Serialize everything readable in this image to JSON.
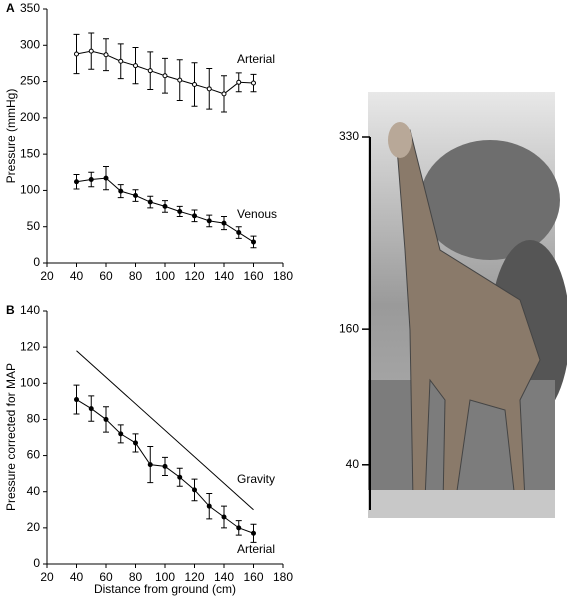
{
  "chart_data": [
    {
      "type": "line",
      "panel": "A",
      "ylabel": "Pressure (mmHg)",
      "xlim": [
        20,
        180
      ],
      "xticks": [
        20,
        40,
        60,
        80,
        100,
        120,
        140,
        160,
        180
      ],
      "ylim": [
        0,
        350
      ],
      "yticks": [
        0,
        50,
        100,
        150,
        200,
        250,
        300,
        350
      ],
      "series": [
        {
          "name": "Arterial",
          "color": "#000000",
          "marker": "open",
          "x": [
            40,
            50,
            60,
            70,
            80,
            90,
            100,
            110,
            120,
            130,
            140,
            150,
            160
          ],
          "values": [
            288,
            292,
            287,
            278,
            272,
            265,
            258,
            252,
            246,
            240,
            233,
            249,
            248
          ],
          "errors": [
            27,
            25,
            22,
            24,
            25,
            26,
            24,
            28,
            30,
            28,
            25,
            13,
            12
          ]
        },
        {
          "name": "Venous",
          "color": "#000000",
          "marker": "filled",
          "x": [
            40,
            50,
            60,
            70,
            80,
            90,
            100,
            110,
            120,
            130,
            140,
            150,
            160
          ],
          "values": [
            112,
            115,
            117,
            99,
            93,
            84,
            78,
            71,
            65,
            58,
            55,
            42,
            29
          ],
          "errors": [
            10,
            10,
            16,
            9,
            8,
            8,
            8,
            7,
            8,
            8,
            9,
            8,
            8
          ]
        }
      ]
    },
    {
      "type": "line",
      "panel": "B",
      "ylabel": "Pressure corrected for MAP",
      "xlabel": "Distance from ground (cm)",
      "xlim": [
        20,
        180
      ],
      "xticks": [
        20,
        40,
        60,
        80,
        100,
        120,
        140,
        160,
        180
      ],
      "ylim": [
        0,
        140
      ],
      "yticks": [
        0,
        20,
        40,
        60,
        80,
        100,
        120,
        140
      ],
      "series": [
        {
          "name": "Gravity",
          "color": "#000000",
          "marker": "none",
          "x": [
            40,
            160
          ],
          "values": [
            118,
            30
          ]
        },
        {
          "name": "Arterial",
          "color": "#000000",
          "marker": "filled",
          "x": [
            40,
            50,
            60,
            70,
            80,
            90,
            100,
            110,
            120,
            130,
            140,
            150,
            160
          ],
          "values": [
            91,
            86,
            80,
            72,
            67,
            55,
            54,
            48,
            41,
            32,
            26,
            20,
            17
          ],
          "errors": [
            8,
            7,
            7,
            5,
            5,
            10,
            5,
            5,
            6,
            7,
            6,
            4,
            5
          ]
        }
      ]
    }
  ],
  "photo": {
    "ylim": [
      0,
      330
    ],
    "scale_ticks": [
      330,
      160,
      40
    ]
  }
}
